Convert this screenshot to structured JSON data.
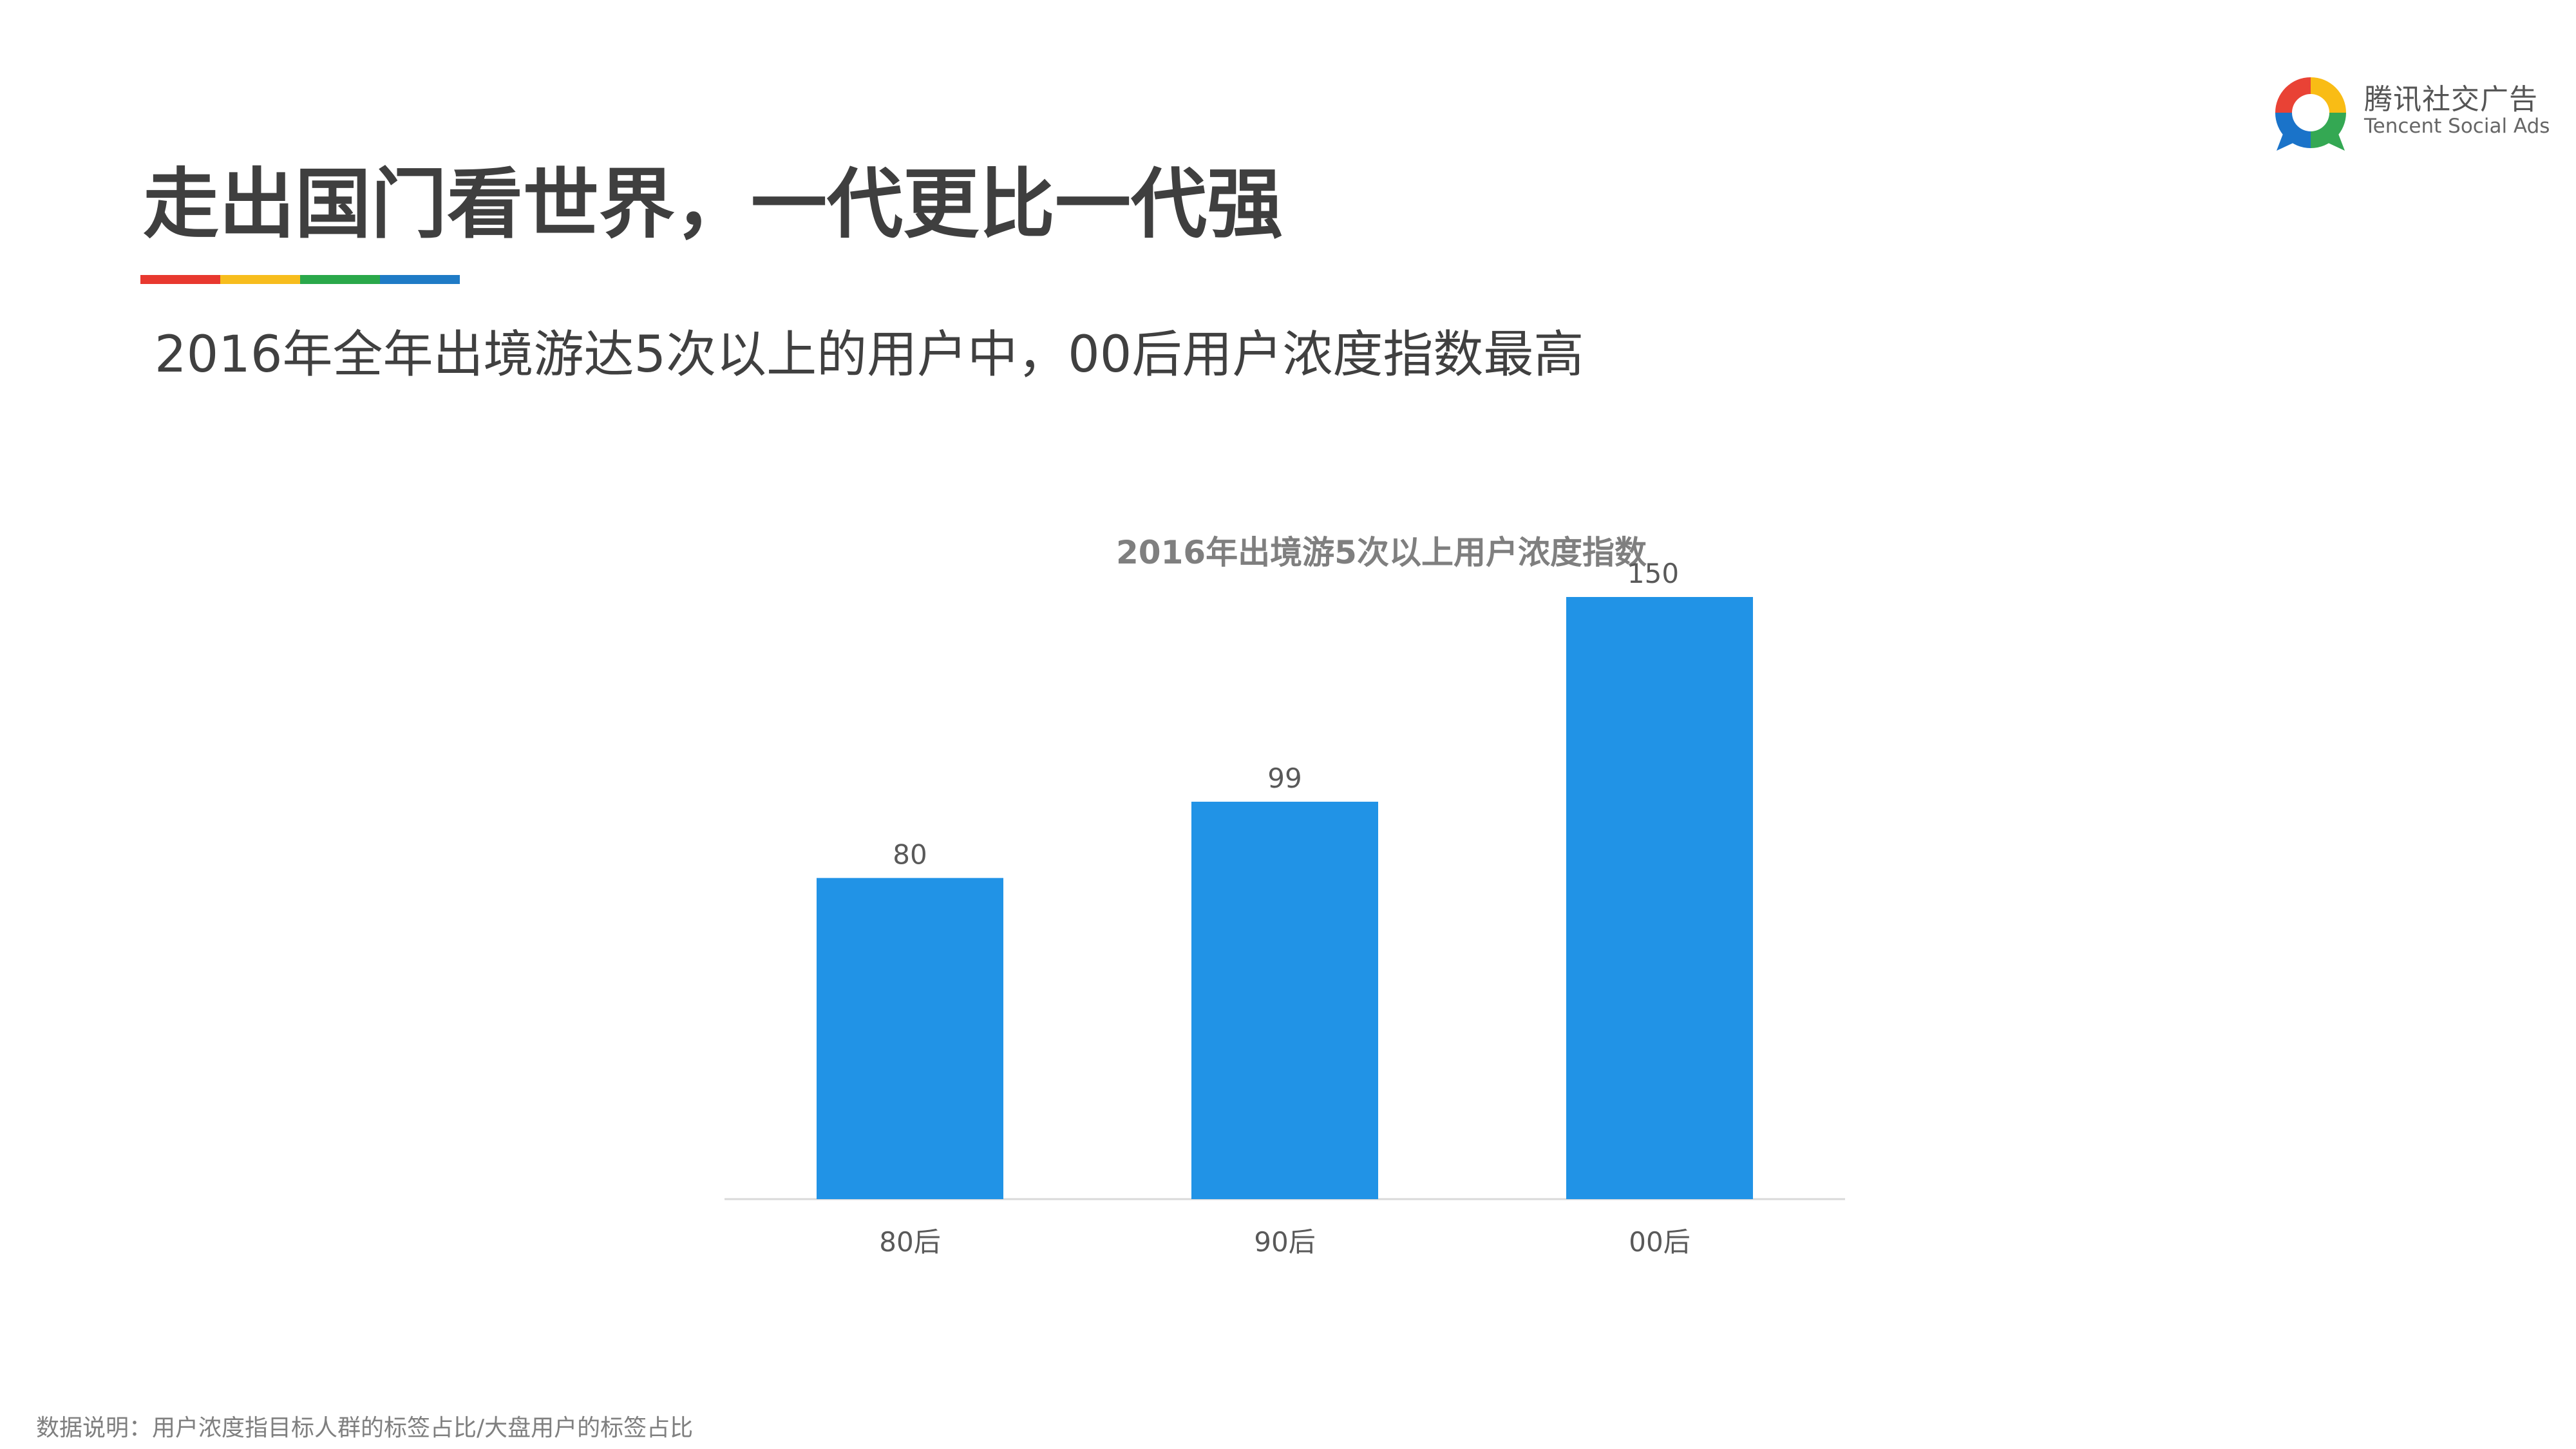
{
  "brand": {
    "name_cn": "腾讯社交广告",
    "name_en": "Tencent Social Ads",
    "colors": [
      "#e94235",
      "#f9bc15",
      "#34a853",
      "#1a73c9"
    ]
  },
  "page": {
    "title": "走出国门看世界，一代更比一代强",
    "subtitle": "2016年全年出境游达5次以上的用户中，00后用户浓度指数最高",
    "title_rule_colors": [
      "#e8382f",
      "#f7bd1d",
      "#2aa84a",
      "#1f7bc6"
    ]
  },
  "chart_data": {
    "type": "bar",
    "title": "2016年出境游5次以上用户浓度指数",
    "categories": [
      "80后",
      "90后",
      "00后"
    ],
    "values": [
      80,
      99,
      150
    ],
    "data_labels": [
      "80",
      "99",
      "150"
    ],
    "ylim": [
      0,
      150
    ],
    "bar_color": "#2193e6",
    "grid": false,
    "legend": "none"
  },
  "footnote": "数据说明：用户浓度指目标人群的标签占比/大盘用户的标签占比"
}
